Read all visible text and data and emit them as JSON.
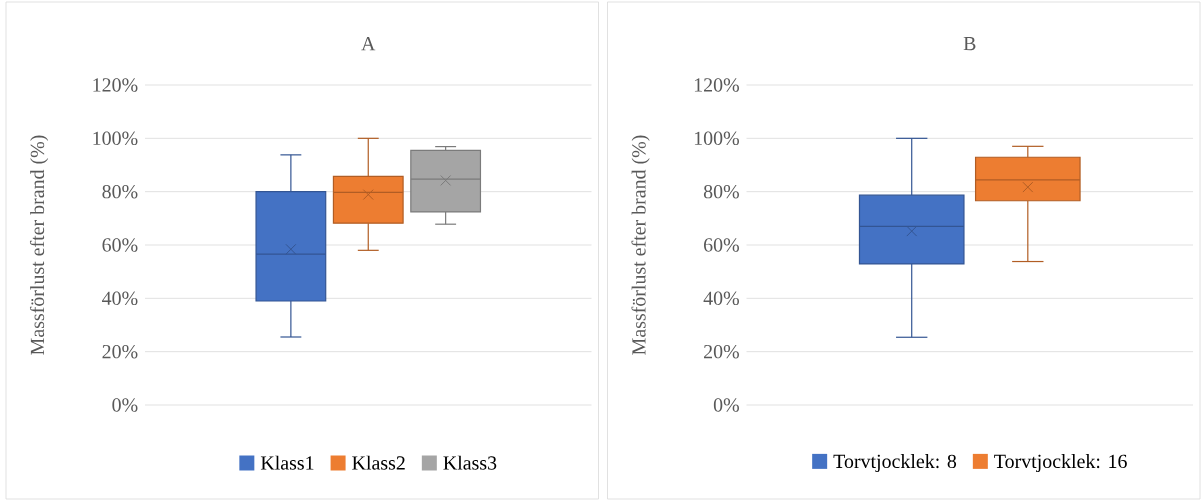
{
  "chart_data": [
    {
      "type": "box",
      "title": "A",
      "ylabel": "Massförlust efter brand (%)",
      "categories": [
        null
      ],
      "ylim": [
        0,
        120
      ],
      "yticks": [
        {
          "value": 0,
          "label": "0%"
        },
        {
          "value": 20,
          "label": "20%"
        },
        {
          "value": 40,
          "label": "40%"
        },
        {
          "value": 60,
          "label": "60%"
        },
        {
          "value": 80,
          "label": "80%"
        },
        {
          "value": 100,
          "label": "100%"
        },
        {
          "value": 120,
          "label": "120%"
        }
      ],
      "grid": "y",
      "legend": "bottom",
      "marker": "cross",
      "series": [
        {
          "name": "Klass1",
          "color": "#4472c4",
          "boxes": [
            {
              "low": 25.5,
              "q1": 39,
              "median": 56.6,
              "q3": 80,
              "high": 93.8,
              "mean": 58.4
            }
          ]
        },
        {
          "name": "Klass2",
          "color": "#ed7d31",
          "boxes": [
            {
              "low": 58,
              "q1": 68.2,
              "median": 79.7,
              "q3": 85.7,
              "high": 100,
              "mean": 78.9
            }
          ]
        },
        {
          "name": "Klass3",
          "color": "#a5a5a5",
          "boxes": [
            {
              "low": 67.8,
              "q1": 72.4,
              "median": 84.7,
              "q3": 95.5,
              "high": 96.9,
              "mean": 84.2
            }
          ]
        }
      ]
    },
    {
      "type": "box",
      "title": "B",
      "ylabel": "Massförlust  efter brand (%)",
      "categories": [
        null
      ],
      "ylim": [
        0,
        120
      ],
      "yticks": [
        {
          "value": 0,
          "label": "0%"
        },
        {
          "value": 20,
          "label": "20%"
        },
        {
          "value": 40,
          "label": "40%"
        },
        {
          "value": 60,
          "label": "60%"
        },
        {
          "value": 80,
          "label": "80%"
        },
        {
          "value": 100,
          "label": "100%"
        },
        {
          "value": 120,
          "label": "120%"
        }
      ],
      "grid": "y",
      "legend": "bottom",
      "marker": "cross",
      "series": [
        {
          "name": "Torvtjocklek: 8",
          "color": "#4472c4",
          "boxes": [
            {
              "low": 25.4,
              "q1": 52.9,
              "median": 67,
              "q3": 78.7,
              "high": 100,
              "mean": 65.2
            }
          ]
        },
        {
          "name": "Torvtjocklek: 16",
          "color": "#ed7d31",
          "boxes": [
            {
              "low": 53.8,
              "q1": 76.6,
              "median": 84.4,
              "q3": 92.9,
              "high": 97,
              "mean": 81.7
            }
          ]
        }
      ]
    }
  ]
}
